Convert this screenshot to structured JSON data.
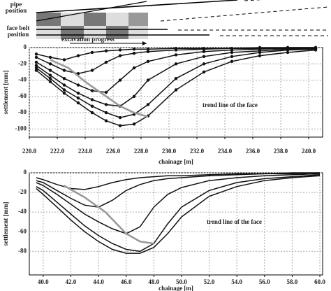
{
  "chart_data": [
    {
      "type": "line",
      "x_label": "chainage [m]",
      "y_label": "settlement [mm]",
      "xlim": [
        220,
        241
      ],
      "ylim": [
        -110,
        0
      ],
      "grid": true,
      "markers": true,
      "xticks": [
        {
          "value": 220,
          "label": "220.0"
        },
        {
          "value": 222,
          "label": "222.0"
        },
        {
          "value": 224,
          "label": "224.0"
        },
        {
          "value": 226,
          "label": "226.0"
        },
        {
          "value": 228,
          "label": "228.0"
        },
        {
          "value": 230,
          "label": "230.0"
        },
        {
          "value": 232,
          "label": "232.0"
        },
        {
          "value": 234,
          "label": "234.0"
        },
        {
          "value": 236,
          "label": "236.0"
        },
        {
          "value": 238,
          "label": "238.0"
        },
        {
          "value": 240,
          "label": "240.0"
        }
      ],
      "yticks": [
        0,
        -20,
        -40,
        -60,
        -80,
        -100
      ],
      "annotations": [
        "trend line of the face",
        "excavation progress",
        "pipe position",
        "face bolt position"
      ],
      "series": [
        {
          "color": "#111111",
          "x": [
            220.5,
            221.5,
            222.5,
            223.5,
            224.5,
            225.5,
            226.5,
            227.5,
            228.5,
            230.5,
            232.5,
            234.5,
            236.5,
            238.5,
            240.5
          ],
          "values": [
            -8,
            -12,
            -15,
            -10,
            -6,
            -4,
            -3,
            -2,
            -2,
            -1,
            -1,
            -1,
            0,
            0,
            0
          ]
        },
        {
          "color": "#111111",
          "x": [
            220.5,
            221.5,
            222.5,
            223.5,
            224.5,
            225.5,
            226.5,
            227.5,
            228.5,
            230.5,
            232.5,
            234.5,
            236.5,
            238.5,
            240.5
          ],
          "values": [
            -12,
            -20,
            -28,
            -32,
            -28,
            -18,
            -10,
            -7,
            -5,
            -3,
            -2,
            -1,
            -1,
            0,
            0
          ]
        },
        {
          "color": "#111111",
          "x": [
            220.5,
            221.5,
            222.5,
            223.5,
            224.5,
            225.5,
            226.5,
            227.5,
            228.5,
            230.5,
            232.5,
            234.5,
            236.5,
            238.5,
            240.5
          ],
          "values": [
            -18,
            -28,
            -38,
            -46,
            -53,
            -55,
            -40,
            -25,
            -17,
            -9,
            -5,
            -3,
            -2,
            -1,
            -1
          ]
        },
        {
          "color": "#111111",
          "x": [
            220.5,
            221.5,
            222.5,
            223.5,
            224.5,
            225.5,
            226.5,
            227.5,
            228.5,
            230.5,
            232.5,
            234.5,
            236.5,
            238.5,
            240.5
          ],
          "values": [
            -22,
            -34,
            -46,
            -56,
            -64,
            -70,
            -72,
            -60,
            -40,
            -20,
            -11,
            -6,
            -4,
            -2,
            -1
          ]
        },
        {
          "color": "#111111",
          "x": [
            220.5,
            221.5,
            222.5,
            223.5,
            224.5,
            225.5,
            226.5,
            227.5,
            228.5,
            230.5,
            232.5,
            234.5,
            236.5,
            238.5,
            240.5
          ],
          "values": [
            -25,
            -38,
            -52,
            -62,
            -72,
            -80,
            -86,
            -82,
            -70,
            -38,
            -20,
            -11,
            -6,
            -3,
            -2
          ]
        },
        {
          "color": "#111111",
          "x": [
            220.5,
            221.5,
            222.5,
            223.5,
            224.5,
            225.5,
            226.5,
            227.5,
            228.5,
            230.5,
            232.5,
            234.5,
            236.5,
            238.5,
            240.5
          ],
          "values": [
            -28,
            -42,
            -56,
            -68,
            -80,
            -90,
            -96,
            -94,
            -84,
            -52,
            -30,
            -17,
            -10,
            -6,
            -3
          ]
        },
        {
          "color": "#999999",
          "trend": true,
          "x": [
            221.5,
            222.8,
            224,
            225.5,
            226.5,
            227.5,
            228.5
          ],
          "values": [
            -15,
            -25,
            -42,
            -60,
            -72,
            -80,
            -85
          ]
        }
      ]
    },
    {
      "type": "line",
      "x_label": "chainage [m]",
      "y_label": "settlement [mm]",
      "xlim": [
        39,
        60.2
      ],
      "ylim": [
        -104,
        0
      ],
      "grid": true,
      "markers": false,
      "xticks": [
        {
          "value": 40,
          "label": "40.0"
        },
        {
          "value": 42,
          "label": "42.0"
        },
        {
          "value": 44,
          "label": "44.0"
        },
        {
          "value": 46,
          "label": "46.0"
        },
        {
          "value": 48,
          "label": "48.0"
        },
        {
          "value": 50,
          "label": "50.0"
        },
        {
          "value": 52,
          "label": "52.0"
        },
        {
          "value": 54,
          "label": "54.0"
        },
        {
          "value": 56,
          "label": "56.0"
        },
        {
          "value": 58,
          "label": "58.0"
        },
        {
          "value": 60,
          "label": "60.0"
        }
      ],
      "yticks": [
        0,
        -20,
        -40,
        -60,
        -80
      ],
      "annotations": [
        "trend line of the face"
      ],
      "series": [
        {
          "color": "#111111",
          "x": [
            39.5,
            40,
            41,
            42,
            43,
            44,
            45,
            46,
            47,
            48,
            49,
            50,
            52,
            54,
            56,
            58,
            60
          ],
          "values": [
            -5,
            -7,
            -12,
            -16,
            -17,
            -14,
            -10,
            -7,
            -5,
            -4,
            -3,
            -3,
            -2,
            -1,
            -1,
            0,
            0
          ]
        },
        {
          "color": "#111111",
          "x": [
            39.5,
            40,
            41,
            42,
            43,
            44,
            45,
            46,
            47,
            48,
            49,
            50,
            52,
            54,
            56,
            58,
            60
          ],
          "values": [
            -8,
            -10,
            -18,
            -26,
            -33,
            -35,
            -28,
            -18,
            -12,
            -8,
            -6,
            -5,
            -3,
            -2,
            -1,
            -1,
            0
          ]
        },
        {
          "color": "#111111",
          "x": [
            39.5,
            40,
            41,
            42,
            43,
            44,
            45,
            46,
            47,
            48,
            49,
            50,
            52,
            54,
            56,
            58,
            60
          ],
          "values": [
            -10,
            -13,
            -22,
            -32,
            -42,
            -50,
            -57,
            -62,
            -55,
            -35,
            -22,
            -15,
            -8,
            -5,
            -3,
            -2,
            -1
          ]
        },
        {
          "color": "#111111",
          "x": [
            39.5,
            40,
            41,
            42,
            43,
            44,
            45,
            46,
            47,
            48,
            49,
            50,
            52,
            54,
            56,
            58,
            60
          ],
          "values": [
            -14,
            -18,
            -30,
            -42,
            -54,
            -64,
            -72,
            -78,
            -80,
            -72,
            -52,
            -35,
            -18,
            -10,
            -6,
            -4,
            -2
          ]
        },
        {
          "color": "#111111",
          "x": [
            39.5,
            40,
            41,
            42,
            43,
            44,
            45,
            46,
            47,
            48,
            49,
            50,
            52,
            54,
            56,
            58,
            60
          ],
          "values": [
            -16,
            -22,
            -35,
            -48,
            -60,
            -70,
            -78,
            -82,
            -82,
            -76,
            -62,
            -45,
            -24,
            -14,
            -8,
            -5,
            -3
          ]
        },
        {
          "color": "#999999",
          "trend": true,
          "x": [
            41.5,
            43,
            44.5,
            46,
            47,
            48
          ],
          "values": [
            -13,
            -25,
            -40,
            -62,
            -70,
            -72
          ]
        }
      ]
    }
  ]
}
